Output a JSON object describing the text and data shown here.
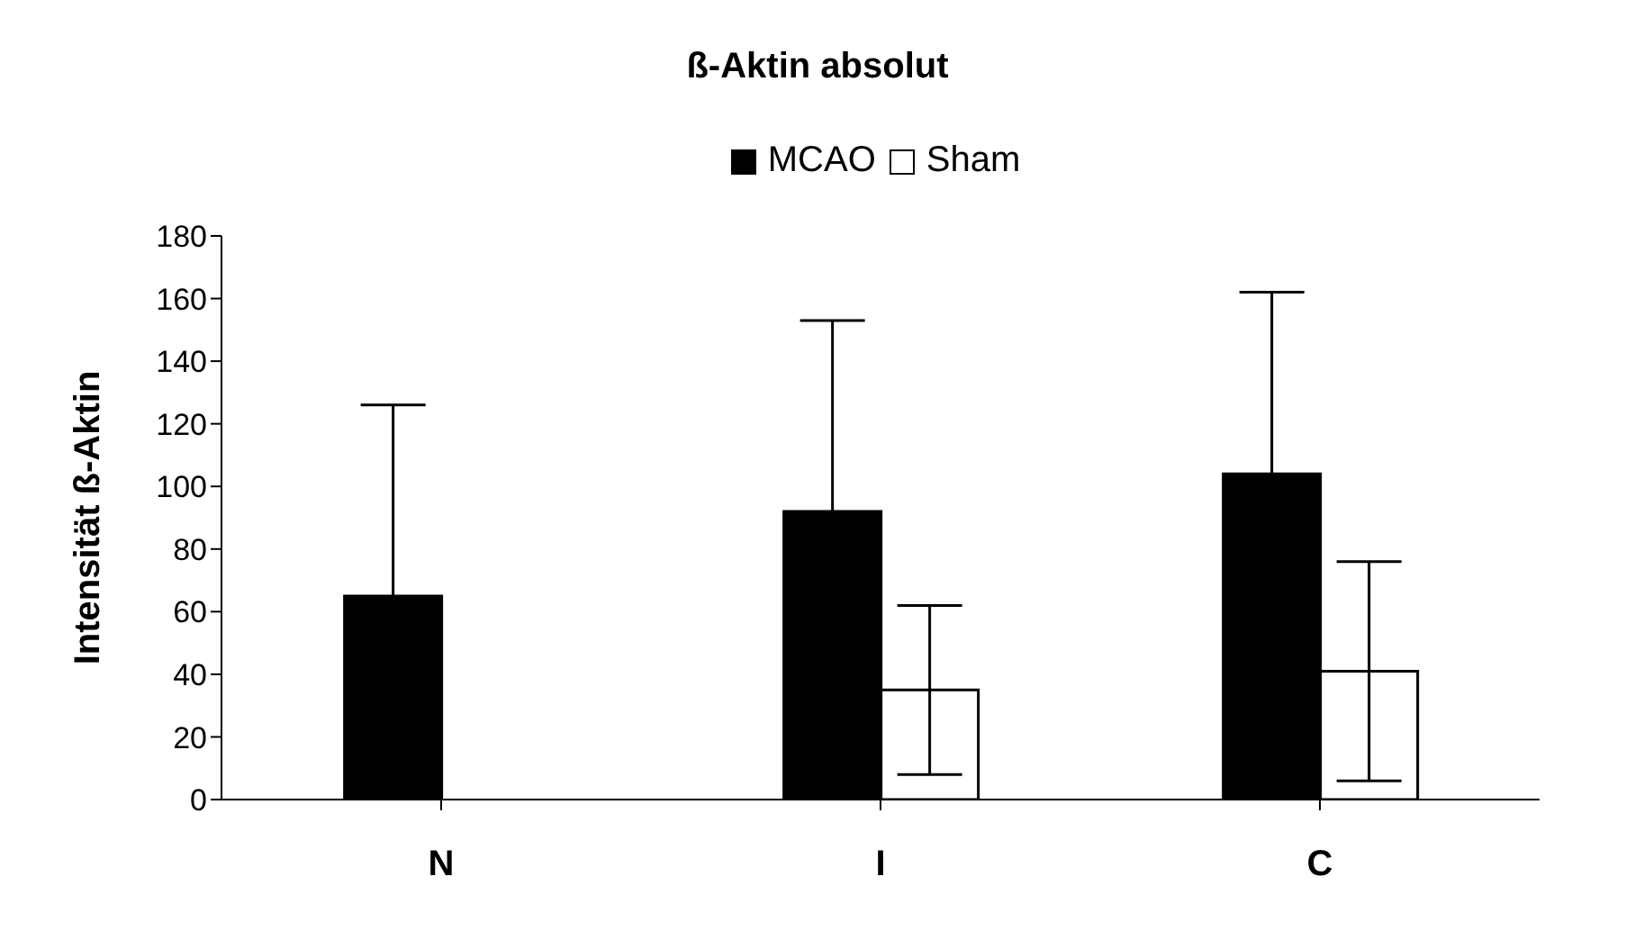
{
  "chart_data": {
    "type": "bar",
    "title": "ß-Aktin absolut",
    "ylabel": "Intensität ß-Aktin",
    "categories": [
      "N",
      "I",
      "C"
    ],
    "series": [
      {
        "name": "MCAO",
        "color": "#000000",
        "values": [
          65,
          92,
          104
        ],
        "errors": [
          61,
          61,
          58
        ]
      },
      {
        "name": "Sham",
        "color": "#ffffff",
        "values": [
          0,
          35,
          41
        ],
        "errors": [
          null,
          27,
          35
        ]
      }
    ],
    "ylim": [
      0,
      180
    ],
    "yticks": [
      0,
      20,
      40,
      60,
      80,
      100,
      120,
      140,
      160,
      180
    ],
    "grid": false,
    "legend": "top"
  }
}
